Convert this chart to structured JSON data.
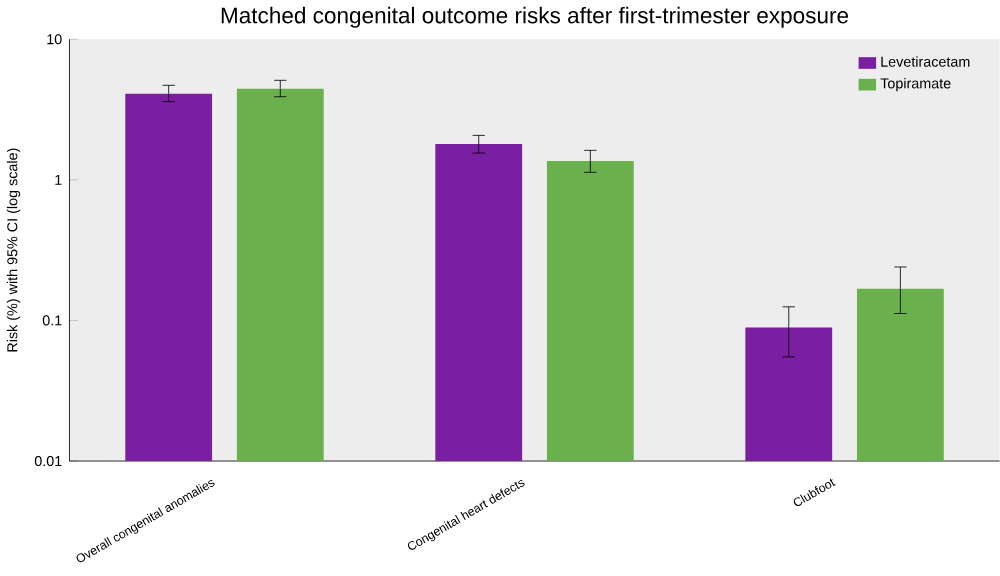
{
  "chart_data": {
    "type": "bar",
    "title": "Matched congenital outcome risks after first-trimester exposure",
    "ylabel": "Risk (%) with 95% CI (log scale)",
    "categories": [
      "Overall congenital anomalies",
      "Congenital heart defects",
      "Clubfoot"
    ],
    "series": [
      {
        "name": "Levetiracetam",
        "color": "#7a1fa2",
        "values": [
          4.1,
          1.8,
          0.089
        ],
        "errors": [
          [
            3.6,
            4.7
          ],
          [
            1.55,
            2.07
          ],
          [
            0.055,
            0.125
          ]
        ]
      },
      {
        "name": "Topiramate",
        "color": "#6ab04c",
        "values": [
          4.45,
          1.36,
          0.168
        ],
        "errors": [
          [
            3.9,
            5.1
          ],
          [
            1.13,
            1.62
          ],
          [
            0.112,
            0.24
          ]
        ]
      }
    ],
    "log": "y",
    "ylim": [
      0.01,
      10
    ],
    "yticks": [
      0.01,
      0.1,
      1,
      10
    ],
    "legend": "top right",
    "grid": false
  }
}
